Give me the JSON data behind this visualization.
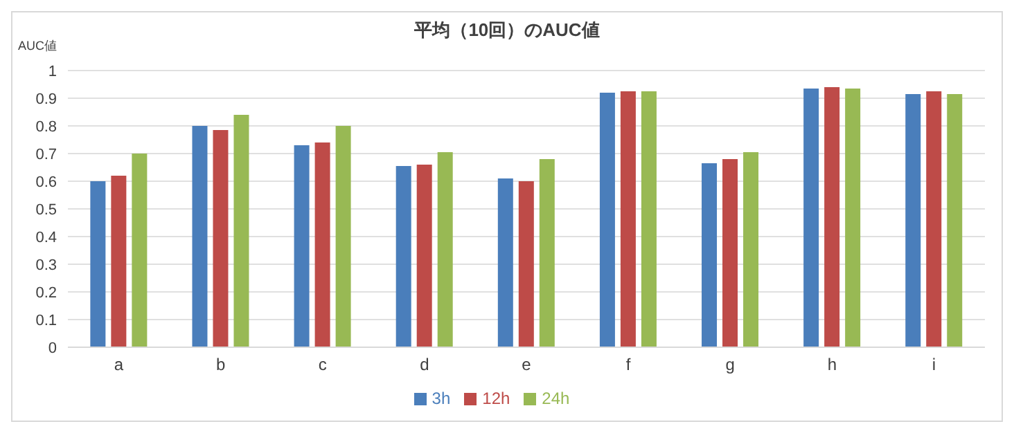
{
  "chart_data": {
    "type": "bar",
    "title": "平均（10回）のAUC値",
    "ylabel": "AUC値",
    "categories": [
      "a",
      "b",
      "c",
      "d",
      "e",
      "f",
      "g",
      "h",
      "i"
    ],
    "series": [
      {
        "name": "3h",
        "color": "#4a7ebb",
        "values": [
          0.6,
          0.8,
          0.73,
          0.655,
          0.61,
          0.92,
          0.665,
          0.935,
          0.915
        ]
      },
      {
        "name": "12h",
        "color": "#be4b48",
        "values": [
          0.62,
          0.785,
          0.74,
          0.66,
          0.6,
          0.925,
          0.68,
          0.94,
          0.925
        ]
      },
      {
        "name": "24h",
        "color": "#98b954",
        "values": [
          0.7,
          0.84,
          0.8,
          0.705,
          0.68,
          0.925,
          0.705,
          0.935,
          0.915
        ]
      }
    ],
    "ylim": [
      0,
      1
    ],
    "yticks": [
      0,
      0.1,
      0.2,
      0.3,
      0.4,
      0.5,
      0.6,
      0.7,
      0.8,
      0.9,
      1
    ],
    "grid": "y",
    "legend": "bottom"
  }
}
